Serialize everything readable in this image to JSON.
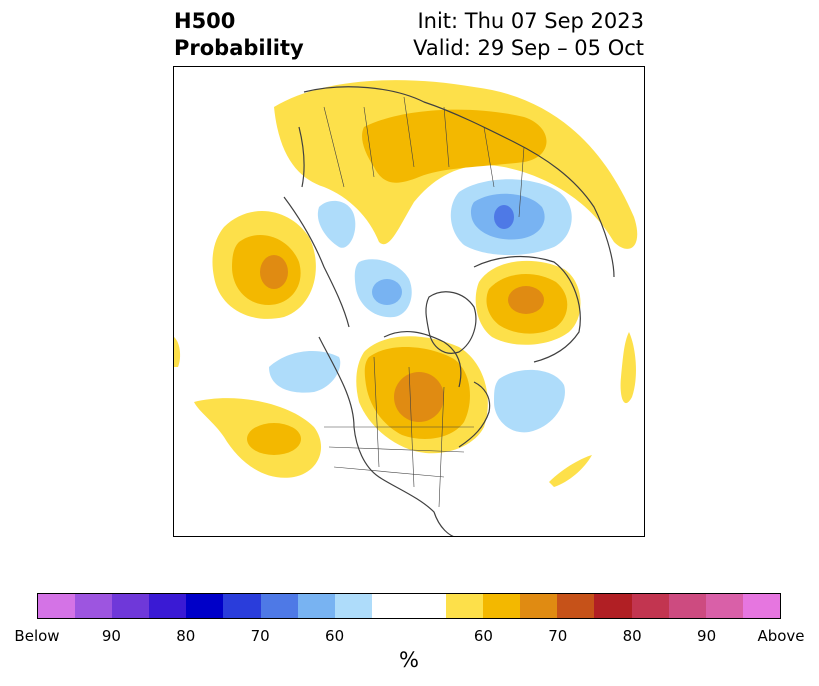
{
  "header": {
    "title_line1": "H500",
    "title_line2": "Probability",
    "init_text": "Init: Thu 07 Sep 2023",
    "valid_text": "Valid: 29 Sep – 05 Oct"
  },
  "colorbar": {
    "unit_label": "%",
    "below_colors": [
      "#d473e6",
      "#9d55e0",
      "#6f38d9",
      "#3a1ad4",
      "#0000c8",
      "#2a3ddb",
      "#4e79e6",
      "#78b3f2",
      "#aedcfa"
    ],
    "neutral_color": "#ffffff",
    "above_colors": [
      "#fde04a",
      "#f3b800",
      "#e08b12",
      "#c65219",
      "#b11f24",
      "#c23550",
      "#cd4b80",
      "#d960a8",
      "#e676e0"
    ],
    "tick_labels": [
      "Below",
      "90",
      "80",
      "70",
      "60",
      "60",
      "70",
      "80",
      "90",
      "Above"
    ]
  },
  "map": {
    "colors": {
      "light_yellow": "#fde04a",
      "gold": "#f3b800",
      "orange": "#e08b12",
      "light_blue": "#aedcfa",
      "mid_blue": "#78b3f2",
      "blue": "#4e79e6",
      "coastline": "#404040"
    }
  }
}
